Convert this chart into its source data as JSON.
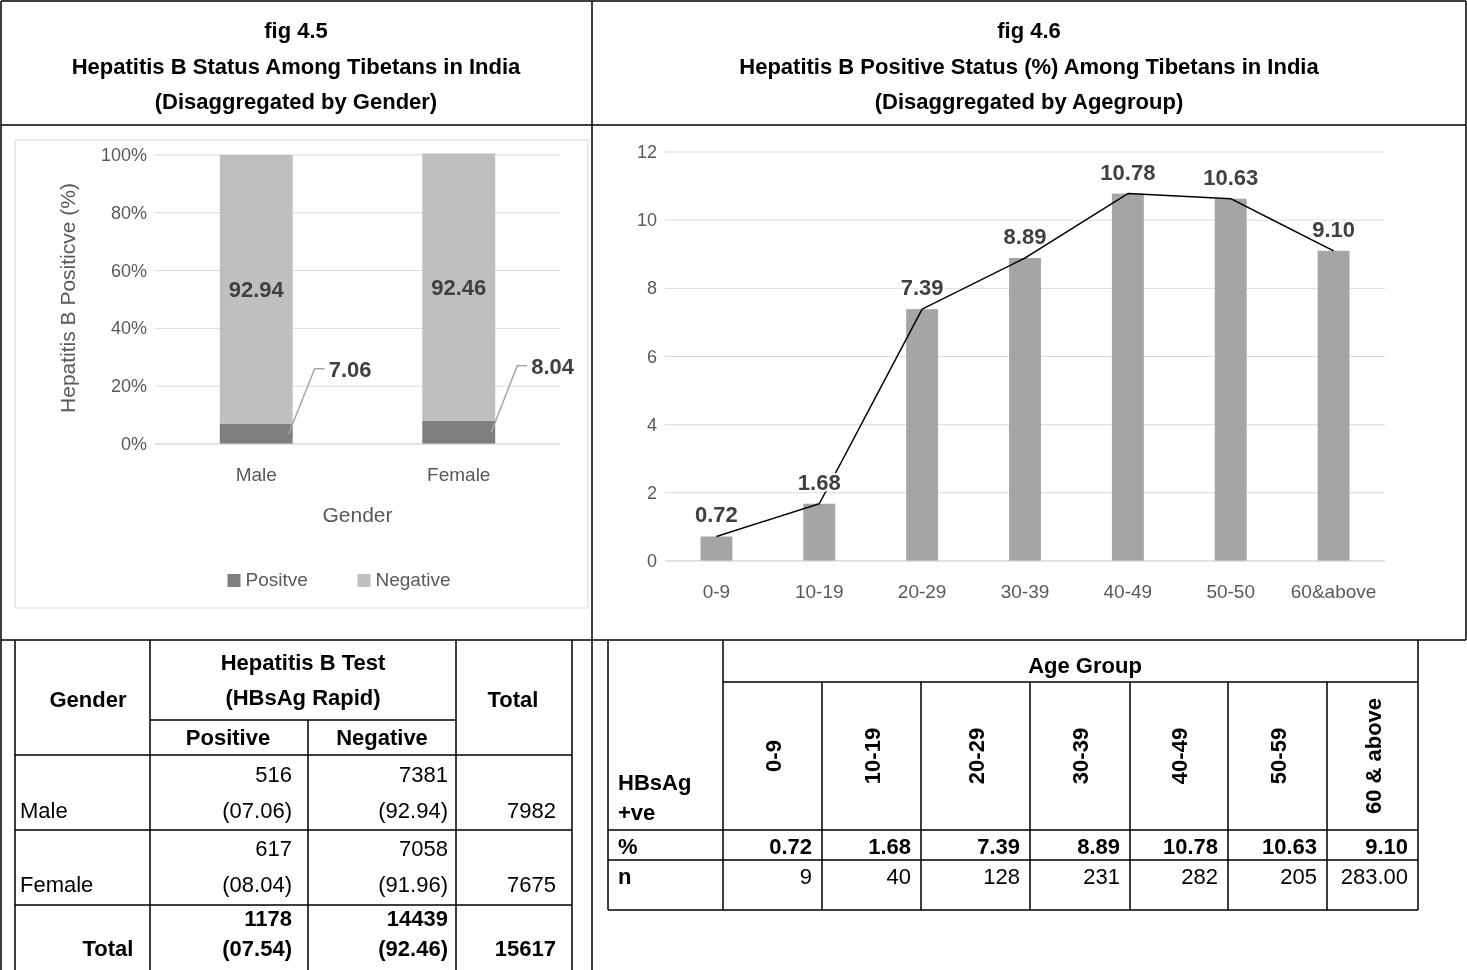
{
  "chart_data": [
    {
      "type": "bar",
      "title": "fig 4.5",
      "subtitle": "Hepatitis B Status Among Tibetans in India (Disaggregated by Gender)",
      "xlabel": "Gender",
      "ylabel": "Hepatitis B Positicve (%)",
      "categories": [
        "Male",
        "Female"
      ],
      "stacked": true,
      "series": [
        {
          "name": "Positve",
          "color": "#7f7f7f",
          "values": [
            7.06,
            8.04
          ]
        },
        {
          "name": "Negative",
          "color": "#bfbfbf",
          "values": [
            92.94,
            92.46
          ]
        }
      ],
      "ylim": [
        0,
        101
      ],
      "yticks": [
        {
          "value": 0,
          "label": "0%"
        },
        {
          "value": 20,
          "label": "20%"
        },
        {
          "value": 40,
          "label": "40%"
        },
        {
          "value": 60,
          "label": "60%"
        },
        {
          "value": 80,
          "label": "80%"
        },
        {
          "value": 100,
          "label": "100%"
        }
      ],
      "grid": "y",
      "legend": "bottom",
      "data_labels": true
    },
    {
      "type": "bar",
      "title": "fig 4.6",
      "subtitle": "Hepatitis B Positive Status (%) Among Tibetans in India (Disaggregated by Agegroup)",
      "categories": [
        "0-9",
        "10-19",
        "20-29",
        "30-39",
        "40-49",
        "50-50",
        "60&above"
      ],
      "series": [
        {
          "color": "#a5a5a5",
          "values": [
            0.72,
            1.68,
            7.39,
            8.89,
            10.78,
            10.63,
            9.1
          ],
          "value_labels": [
            "0.72",
            "1.68",
            "7.39",
            "8.89",
            "10.78",
            "10.63",
            "9.10"
          ]
        },
        {
          "type": "line",
          "color": "#000000",
          "values": [
            0.72,
            1.68,
            7.39,
            8.89,
            10.78,
            10.63,
            9.1
          ]
        }
      ],
      "ylim": [
        0,
        12
      ],
      "yticks": [
        0,
        2,
        4,
        6,
        8,
        10,
        12
      ],
      "grid": "y"
    },
    {
      "type": "other",
      "annotations": [
        "Gender",
        "Hepatitis B Test",
        "(HBsAg Rapid)",
        "Total",
        "Positive",
        "Negative",
        "Male",
        "516",
        "(07.06)",
        "7381",
        "(92.94)",
        "7982",
        "Female",
        "617",
        "(08.04)",
        "7058",
        "(91.96)",
        "7675",
        "Total",
        "1178",
        "(07.54)",
        "14439",
        "(92.46)",
        "15617"
      ]
    },
    {
      "type": "other",
      "annotations": [
        "Age Group",
        "0-9",
        "10-19",
        "20-29",
        "30-39",
        "40-49",
        "50-59",
        "60 & above",
        "HBsAg",
        "+ve",
        "%",
        "0.72",
        "1.68",
        "7.39",
        "8.89",
        "10.78",
        "10.63",
        "9.10",
        "n",
        "9",
        "40",
        "128",
        "231",
        "282",
        "205",
        "283.00"
      ]
    }
  ]
}
